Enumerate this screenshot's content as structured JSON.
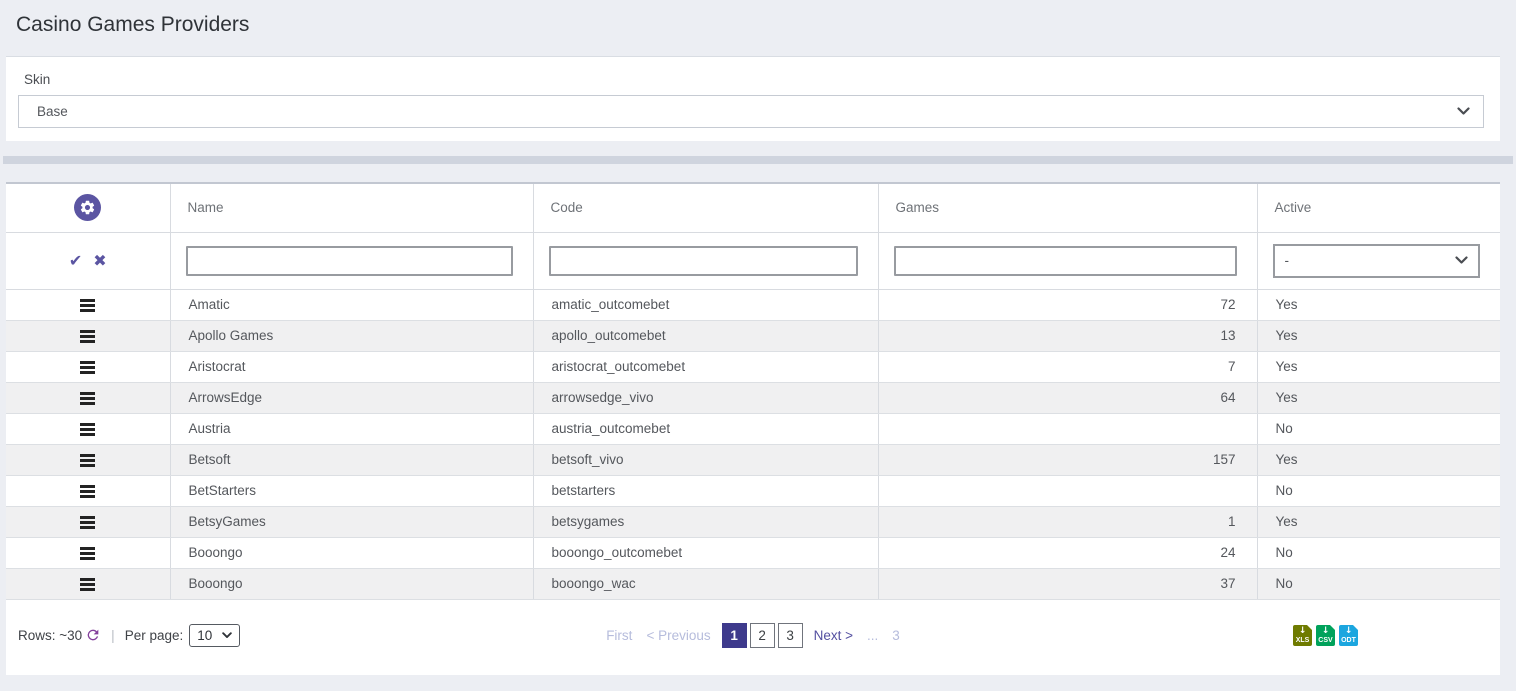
{
  "page": {
    "title": "Casino Games Providers"
  },
  "skin": {
    "label": "Skin",
    "value": "Base"
  },
  "icons": {
    "confirm": "✔",
    "clear": "✖",
    "download": "↓"
  },
  "table": {
    "columns": [
      "Name",
      "Code",
      "Games",
      "Active"
    ],
    "filter": {
      "name_value": "",
      "code_value": "",
      "games_value": "",
      "active_value": "-"
    },
    "rows": [
      {
        "name": "Amatic",
        "code": "amatic_outcomebet",
        "games": "72",
        "active": "Yes"
      },
      {
        "name": "Apollo Games",
        "code": "apollo_outcomebet",
        "games": "13",
        "active": "Yes"
      },
      {
        "name": "Aristocrat",
        "code": "aristocrat_outcomebet",
        "games": "7",
        "active": "Yes"
      },
      {
        "name": "ArrowsEdge",
        "code": "arrowsedge_vivo",
        "games": "64",
        "active": "Yes"
      },
      {
        "name": "Austria",
        "code": "austria_outcomebet",
        "games": "",
        "active": "No"
      },
      {
        "name": "Betsoft",
        "code": "betsoft_vivo",
        "games": "157",
        "active": "Yes"
      },
      {
        "name": "BetStarters",
        "code": "betstarters",
        "games": "",
        "active": "No"
      },
      {
        "name": "BetsyGames",
        "code": "betsygames",
        "games": "1",
        "active": "Yes"
      },
      {
        "name": "Booongo",
        "code": "booongo_outcomebet",
        "games": "24",
        "active": "No"
      },
      {
        "name": "Booongo",
        "code": "booongo_wac",
        "games": "37",
        "active": "No"
      }
    ]
  },
  "footer": {
    "rows_label": "Rows: ~30",
    "separator": "|",
    "per_page_label": "Per page:",
    "per_page_value": "10",
    "pagination": {
      "first": "First",
      "previous": "< Previous",
      "pages": [
        {
          "label": "1",
          "active": true
        },
        {
          "label": "2",
          "active": false
        },
        {
          "label": "3",
          "active": false
        }
      ],
      "next": "Next >",
      "ellipsis": "...",
      "last_hint": "3"
    },
    "exports": [
      {
        "label": "XLS",
        "color": "#6f7b00"
      },
      {
        "label": "CSV",
        "color": "#00a25b"
      },
      {
        "label": "ODT",
        "color": "#1ca6df"
      }
    ]
  },
  "colors": {
    "accent_purple": "#5b55a2",
    "pagination_active": "#3e3a8c",
    "refresh_icon": "#833f9b",
    "page_background": "#eceef3",
    "row_alt_background": "#f0f0f1"
  }
}
